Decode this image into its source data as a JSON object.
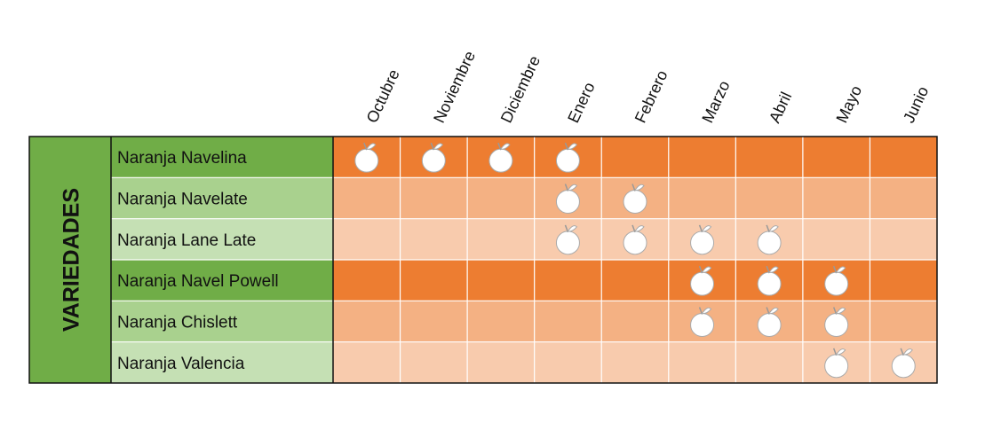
{
  "table": {
    "side_label": "VARIEDADES",
    "months": [
      "Octubre",
      "Noviembre",
      "Diciembre",
      "Enero",
      "Febrero",
      "Marzo",
      "Abril",
      "Mayo",
      "Junio"
    ],
    "rows": [
      {
        "name": "Naranja Navelina",
        "available": [
          true,
          true,
          true,
          true,
          false,
          false,
          false,
          false,
          false
        ]
      },
      {
        "name": "Naranja Navelate",
        "available": [
          false,
          false,
          false,
          true,
          true,
          false,
          false,
          false,
          false
        ]
      },
      {
        "name": "Naranja Lane Late",
        "available": [
          false,
          false,
          false,
          true,
          true,
          true,
          true,
          false,
          false
        ]
      },
      {
        "name": "Naranja Navel Powell",
        "available": [
          false,
          false,
          false,
          false,
          false,
          true,
          true,
          true,
          false
        ]
      },
      {
        "name": "Naranja Chislett",
        "available": [
          false,
          false,
          false,
          false,
          false,
          true,
          true,
          true,
          false
        ]
      },
      {
        "name": "Naranja Valencia",
        "available": [
          false,
          false,
          false,
          false,
          false,
          false,
          false,
          true,
          true
        ]
      }
    ]
  }
}
